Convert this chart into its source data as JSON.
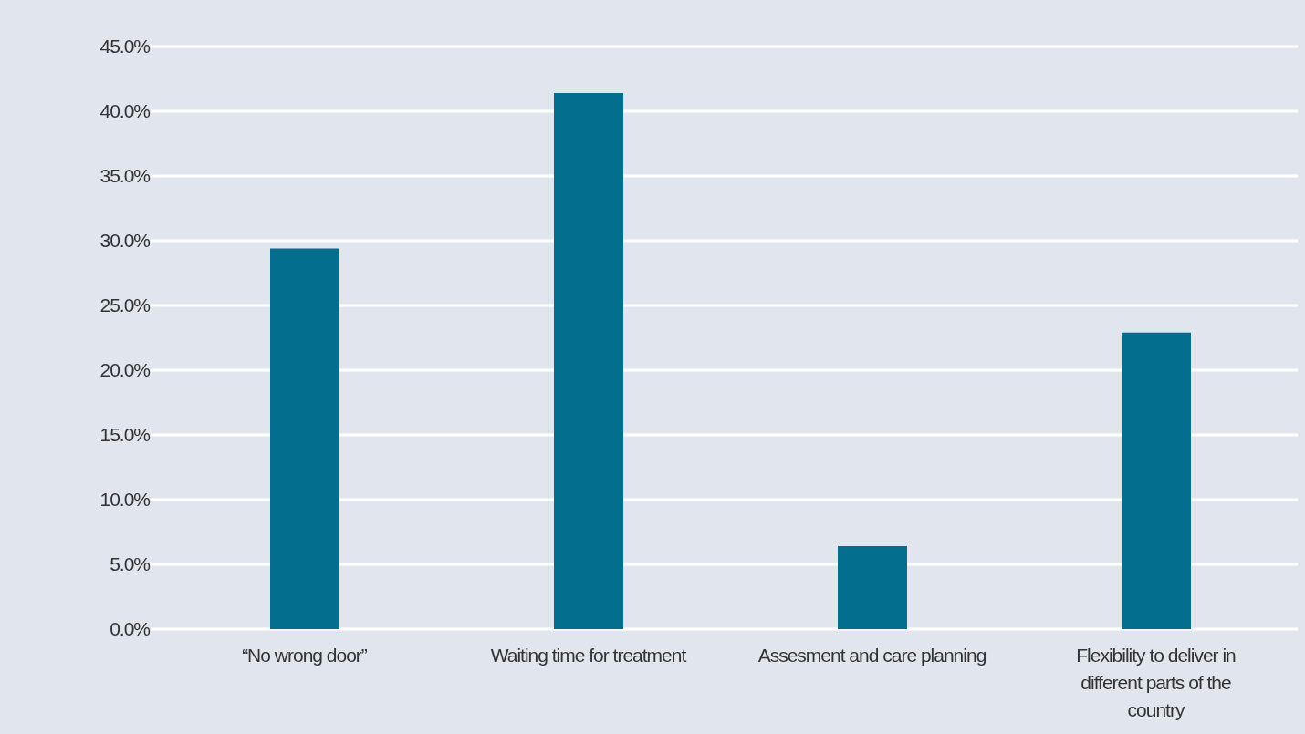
{
  "chart_data": {
    "type": "bar",
    "categories": [
      "“No wrong door”",
      "Waiting time for treatment",
      "Assesment and care planning",
      "Flexibility to deliver in different parts of the country"
    ],
    "values": [
      29.4,
      41.4,
      6.4,
      22.9
    ],
    "color": "#036e8e",
    "ylim": [
      0,
      45
    ],
    "yticks": [
      {
        "value": 0,
        "label": "0.0%"
      },
      {
        "value": 5,
        "label": "5.0%"
      },
      {
        "value": 10,
        "label": "10.0%"
      },
      {
        "value": 15,
        "label": "15.0%"
      },
      {
        "value": 20,
        "label": "20.0%"
      },
      {
        "value": 25,
        "label": "25.0%"
      },
      {
        "value": 30,
        "label": "30.0%"
      },
      {
        "value": 35,
        "label": "35.0%"
      },
      {
        "value": 40,
        "label": "40.0%"
      },
      {
        "value": 45,
        "label": "45.0%"
      }
    ],
    "grid": "y"
  }
}
